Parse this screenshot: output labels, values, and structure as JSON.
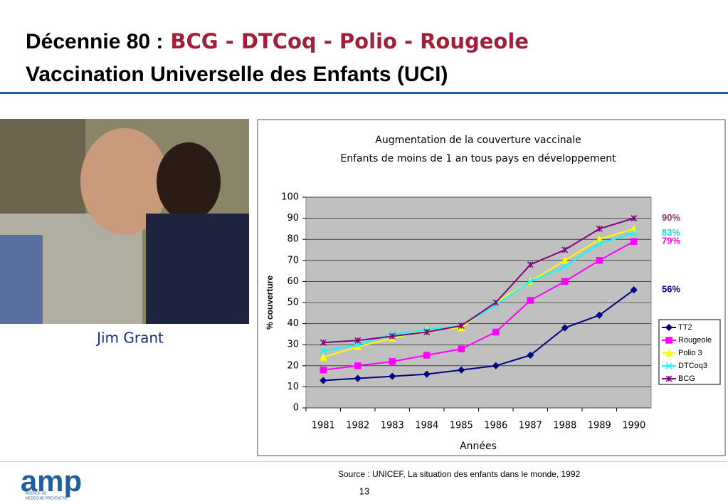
{
  "slide": {
    "title_prefix": "Décennie 80 :",
    "title_highlight": "BCG - DTCoq - Polio - Rougeole",
    "title_line2": "Vaccination Universelle des Enfants (UCI)",
    "caption": "Jim Grant",
    "source": "Source : UNICEF, La situation des enfants dans le monde, 1992",
    "page": "13",
    "logo": "amp",
    "logo_sub": [
      "AGENCE DE",
      "MEDECINE PREVENTIVE"
    ]
  },
  "chart_data": {
    "type": "line",
    "title": "Augmentation de la couverture vaccinale",
    "subtitle": "Enfants de moins de 1 an tous pays en développement",
    "x_label": "Années",
    "y_label": "% couverture",
    "categories": [
      "1981",
      "1982",
      "1983",
      "1984",
      "1985",
      "1986",
      "1987",
      "1988",
      "1989",
      "1990"
    ],
    "series": [
      {
        "name": "TT2",
        "color": "#000080",
        "marker": "diamond",
        "values": [
          13,
          14,
          15,
          16,
          18,
          20,
          25,
          38,
          44,
          56
        ]
      },
      {
        "name": "Rougeole",
        "color": "#ff00ff",
        "marker": "square",
        "values": [
          18,
          20,
          22,
          25,
          28,
          36,
          51,
          60,
          70,
          79
        ]
      },
      {
        "name": "Polio 3",
        "color": "#ffff00",
        "marker": "triangle",
        "values": [
          24,
          29,
          33,
          37,
          38,
          50,
          60,
          70,
          80,
          85
        ]
      },
      {
        "name": "DTCoq3",
        "color": "#00ffff",
        "marker": "x",
        "values": [
          27,
          30,
          35,
          37,
          39,
          49,
          60,
          67,
          78,
          83
        ]
      },
      {
        "name": "BCG",
        "color": "#800080",
        "marker": "star",
        "values": [
          31,
          32,
          34,
          36,
          39,
          50,
          68,
          75,
          85,
          90
        ]
      }
    ],
    "annotations": [
      {
        "label": "90%",
        "value": 90,
        "color": "#993366"
      },
      {
        "label": "83%",
        "value": 83,
        "color": "#33cccc"
      },
      {
        "label": "79%",
        "value": 79,
        "color": "#ff00ff"
      },
      {
        "label": "56%",
        "value": 56,
        "color": "#000080"
      }
    ],
    "ylim": [
      0,
      100
    ],
    "yticks": [
      0,
      10,
      20,
      30,
      40,
      50,
      60,
      70,
      80,
      90,
      100
    ],
    "plot_background": "#c0c0c0",
    "legend": "right"
  }
}
